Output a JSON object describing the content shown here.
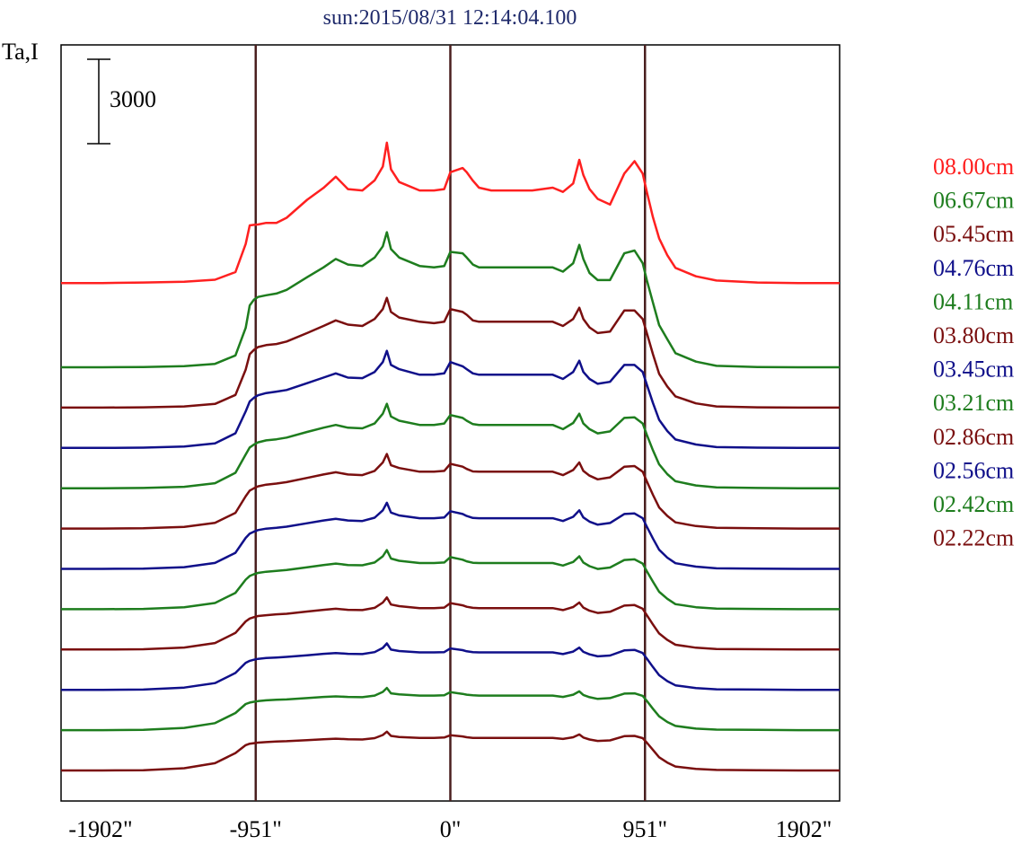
{
  "chart_data": {
    "type": "line",
    "title": "sun:2015/08/31 12:14:04.100",
    "ylabel": "Ta,I",
    "scale_bar": {
      "label": "3000",
      "value": 3000
    },
    "xlim": [
      -1902,
      1902
    ],
    "x_ticks": [
      {
        "value": -1902,
        "label": "-1902\""
      },
      {
        "value": -951,
        "label": "-951\""
      },
      {
        "value": 0,
        "label": "0\""
      },
      {
        "value": 951,
        "label": "951\""
      },
      {
        "value": 1902,
        "label": "1902\""
      }
    ],
    "vertical_lines": [
      -951,
      0,
      951
    ],
    "colors": {
      "red": "#ff2020",
      "green": "#1e7d1e",
      "maroon": "#7a0f0f",
      "navy": "#10108a",
      "frame": "#000000",
      "vline": "#4a1f1f"
    },
    "x": [
      -1902,
      -1700,
      -1500,
      -1300,
      -1150,
      -1050,
      -1000,
      -980,
      -960,
      -940,
      -900,
      -850,
      -800,
      -700,
      -620,
      -560,
      -500,
      -430,
      -370,
      -330,
      -310,
      -290,
      -250,
      -150,
      -80,
      -30,
      0,
      60,
      80,
      110,
      140,
      200,
      300,
      400,
      500,
      550,
      600,
      630,
      650,
      680,
      720,
      780,
      850,
      900,
      940,
      960,
      990,
      1020,
      1060,
      1100,
      1200,
      1300,
      1500,
      1700,
      1902
    ],
    "series": [
      {
        "name": "08.00cm",
        "color": "#ff2020",
        "values": [
          1560,
          1560,
          1580,
          1610,
          1680,
          1950,
          2950,
          3610,
          3630,
          3640,
          3700,
          3700,
          3880,
          4520,
          4940,
          5340,
          4900,
          4850,
          5210,
          5700,
          6550,
          5600,
          5150,
          4850,
          4850,
          4900,
          5500,
          5650,
          5500,
          5200,
          4950,
          4850,
          4850,
          4850,
          4950,
          4800,
          5100,
          5940,
          5400,
          4900,
          4550,
          4350,
          5450,
          5890,
          5450,
          4800,
          3900,
          3150,
          2550,
          2100,
          1800,
          1650,
          1580,
          1560,
          1560
        ]
      },
      {
        "name": "06.67cm",
        "color": "#1e7d1e",
        "values": [
          0,
          0,
          10,
          40,
          120,
          420,
          1400,
          2200,
          2400,
          2500,
          2560,
          2620,
          2750,
          3200,
          3550,
          3850,
          3650,
          3600,
          3900,
          4300,
          4800,
          4200,
          3900,
          3600,
          3550,
          3600,
          4100,
          4050,
          3900,
          3650,
          3550,
          3550,
          3550,
          3550,
          3550,
          3400,
          3700,
          4350,
          3850,
          3350,
          3100,
          3100,
          4050,
          4150,
          3700,
          3100,
          2300,
          1500,
          1000,
          500,
          200,
          50,
          10,
          0,
          0
        ]
      },
      {
        "name": "05.45cm",
        "color": "#7a0f0f",
        "values": [
          0,
          0,
          10,
          40,
          130,
          450,
          1350,
          1900,
          2050,
          2150,
          2220,
          2260,
          2350,
          2650,
          2900,
          3100,
          2950,
          2900,
          3150,
          3500,
          3900,
          3400,
          3200,
          3050,
          3000,
          3050,
          3500,
          3400,
          3300,
          3100,
          3050,
          3050,
          3050,
          3050,
          3050,
          2900,
          3150,
          3550,
          3150,
          2850,
          2650,
          2700,
          3450,
          3450,
          3150,
          2650,
          1900,
          1200,
          750,
          400,
          150,
          40,
          10,
          0,
          0
        ]
      },
      {
        "name": "04.76cm",
        "color": "#10108a",
        "values": [
          0,
          0,
          10,
          50,
          160,
          520,
          1300,
          1650,
          1780,
          1870,
          1950,
          2000,
          2060,
          2300,
          2500,
          2650,
          2500,
          2480,
          2700,
          3050,
          3450,
          2950,
          2800,
          2600,
          2600,
          2650,
          3050,
          2900,
          2800,
          2650,
          2600,
          2600,
          2600,
          2600,
          2600,
          2450,
          2700,
          3100,
          2700,
          2450,
          2280,
          2350,
          2950,
          2950,
          2700,
          2250,
          1600,
          1000,
          600,
          300,
          120,
          30,
          10,
          0,
          0
        ]
      },
      {
        "name": "04.11cm",
        "color": "#1e7d1e",
        "values": [
          0,
          0,
          10,
          50,
          180,
          550,
          1200,
          1450,
          1550,
          1630,
          1700,
          1740,
          1800,
          2000,
          2150,
          2250,
          2150,
          2130,
          2300,
          2650,
          3000,
          2550,
          2400,
          2250,
          2250,
          2300,
          2600,
          2500,
          2400,
          2280,
          2250,
          2250,
          2250,
          2250,
          2250,
          2100,
          2320,
          2650,
          2300,
          2100,
          1950,
          2020,
          2500,
          2520,
          2300,
          1900,
          1350,
          850,
          500,
          250,
          100,
          30,
          10,
          0,
          0
        ]
      },
      {
        "name": "03.80cm",
        "color": "#7a0f0f",
        "values": [
          0,
          0,
          10,
          60,
          200,
          560,
          1150,
          1350,
          1430,
          1500,
          1560,
          1600,
          1650,
          1800,
          1920,
          2000,
          1920,
          1900,
          2050,
          2350,
          2650,
          2250,
          2150,
          2020,
          2020,
          2050,
          2300,
          2200,
          2120,
          2030,
          2020,
          2020,
          2020,
          2020,
          2020,
          1900,
          2080,
          2350,
          2050,
          1880,
          1750,
          1820,
          2200,
          2220,
          2020,
          1680,
          1200,
          750,
          450,
          220,
          90,
          25,
          10,
          0,
          0
        ]
      },
      {
        "name": "03.45cm",
        "color": "#10108a",
        "values": [
          0,
          0,
          10,
          60,
          210,
          570,
          1100,
          1250,
          1320,
          1380,
          1430,
          1460,
          1500,
          1620,
          1720,
          1780,
          1720,
          1700,
          1820,
          2080,
          2350,
          2000,
          1900,
          1800,
          1800,
          1830,
          2050,
          1950,
          1880,
          1810,
          1800,
          1800,
          1800,
          1800,
          1800,
          1700,
          1850,
          2080,
          1830,
          1680,
          1570,
          1630,
          1950,
          1970,
          1800,
          1500,
          1080,
          680,
          400,
          200,
          80,
          20,
          10,
          0,
          0
        ]
      },
      {
        "name": "03.21cm",
        "color": "#1e7d1e",
        "values": [
          0,
          0,
          10,
          70,
          220,
          580,
          1050,
          1180,
          1240,
          1290,
          1330,
          1360,
          1390,
          1490,
          1570,
          1620,
          1570,
          1560,
          1660,
          1880,
          2100,
          1800,
          1720,
          1640,
          1640,
          1660,
          1850,
          1760,
          1700,
          1650,
          1640,
          1640,
          1640,
          1640,
          1640,
          1550,
          1680,
          1880,
          1660,
          1530,
          1430,
          1480,
          1750,
          1770,
          1620,
          1350,
          980,
          620,
          370,
          180,
          70,
          20,
          10,
          0,
          0
        ]
      },
      {
        "name": "02.86cm",
        "color": "#7a0f0f",
        "values": [
          0,
          0,
          10,
          70,
          230,
          590,
          1000,
          1100,
          1150,
          1190,
          1220,
          1250,
          1270,
          1350,
          1410,
          1450,
          1410,
          1400,
          1480,
          1670,
          1850,
          1600,
          1540,
          1470,
          1470,
          1490,
          1650,
          1570,
          1520,
          1480,
          1470,
          1470,
          1470,
          1470,
          1470,
          1400,
          1510,
          1670,
          1490,
          1380,
          1300,
          1340,
          1560,
          1580,
          1450,
          1220,
          890,
          570,
          340,
          170,
          65,
          20,
          10,
          0,
          0
        ]
      },
      {
        "name": "02.56cm",
        "color": "#10108a",
        "values": [
          0,
          0,
          10,
          80,
          240,
          600,
          960,
          1030,
          1070,
          1100,
          1130,
          1150,
          1170,
          1230,
          1280,
          1310,
          1280,
          1270,
          1340,
          1490,
          1650,
          1430,
          1380,
          1330,
          1330,
          1340,
          1470,
          1410,
          1370,
          1340,
          1330,
          1330,
          1330,
          1330,
          1330,
          1270,
          1360,
          1500,
          1350,
          1260,
          1190,
          1220,
          1400,
          1420,
          1310,
          1110,
          810,
          520,
          310,
          160,
          60,
          20,
          10,
          0,
          0
        ]
      },
      {
        "name": "02.42cm",
        "color": "#1e7d1e",
        "values": [
          0,
          0,
          10,
          80,
          250,
          610,
          930,
          980,
          1010,
          1030,
          1060,
          1080,
          1090,
          1140,
          1180,
          1200,
          1180,
          1170,
          1230,
          1360,
          1500,
          1310,
          1270,
          1230,
          1230,
          1240,
          1350,
          1290,
          1260,
          1240,
          1230,
          1230,
          1230,
          1230,
          1230,
          1180,
          1260,
          1380,
          1250,
          1170,
          1110,
          1140,
          1300,
          1310,
          1220,
          1040,
          760,
          490,
          290,
          150,
          55,
          20,
          10,
          0,
          0
        ]
      },
      {
        "name": "02.22cm",
        "color": "#7a0f0f",
        "values": [
          0,
          0,
          10,
          80,
          260,
          620,
          900,
          950,
          970,
          990,
          1010,
          1030,
          1040,
          1080,
          1110,
          1130,
          1110,
          1100,
          1150,
          1260,
          1380,
          1230,
          1190,
          1160,
          1160,
          1170,
          1250,
          1210,
          1180,
          1160,
          1160,
          1160,
          1160,
          1160,
          1160,
          1120,
          1180,
          1280,
          1170,
          1100,
          1050,
          1070,
          1220,
          1230,
          1150,
          990,
          730,
          470,
          280,
          140,
          55,
          20,
          10,
          0,
          0
        ]
      }
    ]
  }
}
